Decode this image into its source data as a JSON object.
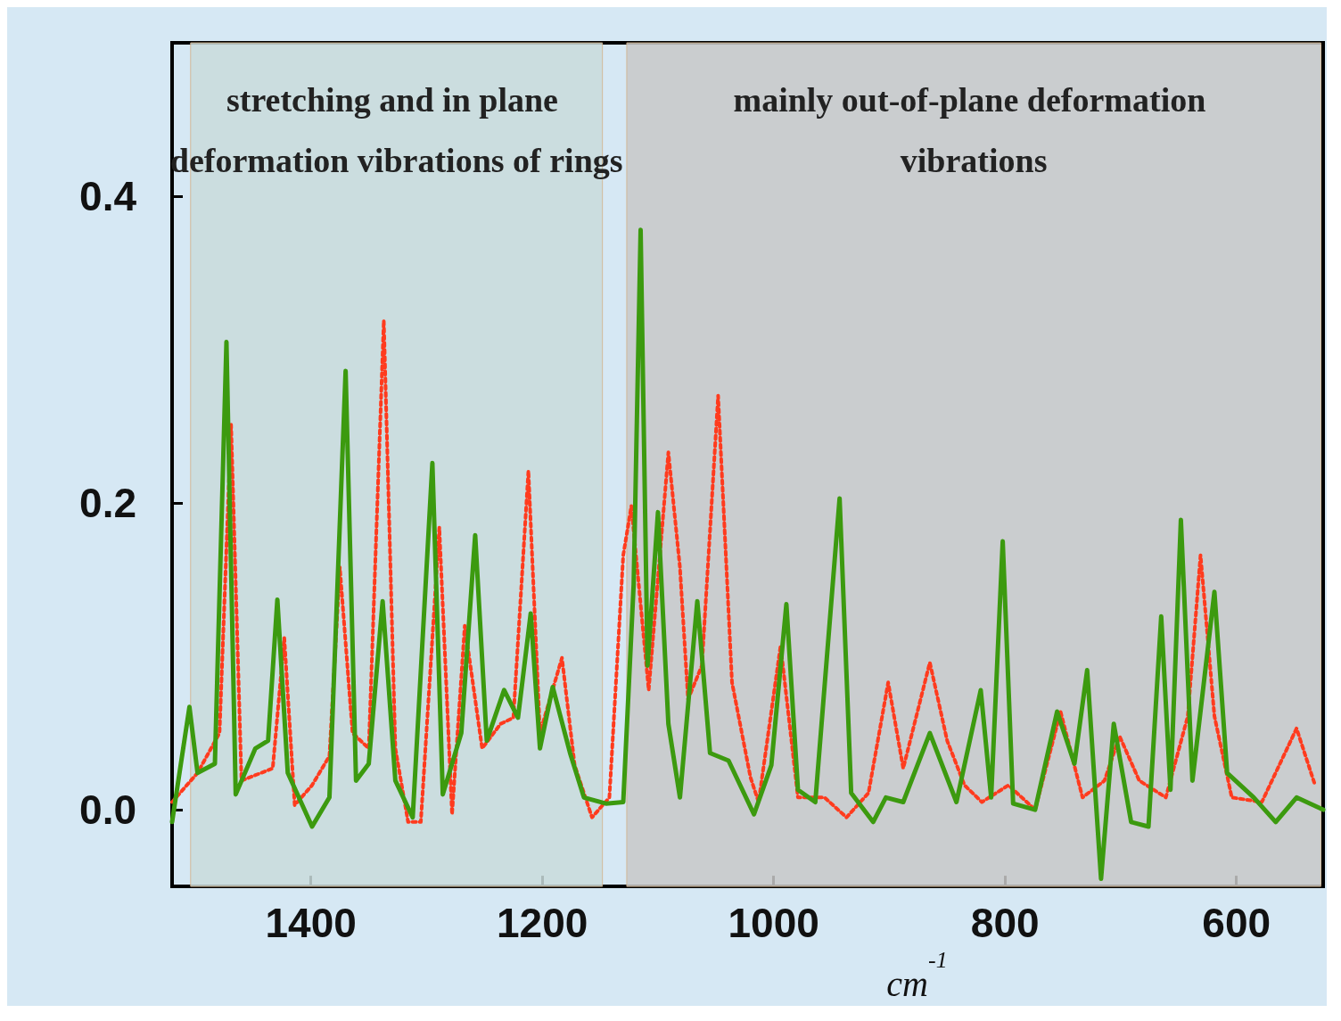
{
  "chart_data": {
    "type": "line",
    "xlabel": "cm$^{-1}$",
    "xlim": [
      1520,
      525
    ],
    "xticks": [
      1400,
      1200,
      1000,
      800,
      600
    ],
    "ylim": [
      -0.05,
      0.5
    ],
    "yticks": [
      {
        "value": 0,
        "label": "0.0"
      },
      {
        "value": 0.2,
        "label": "0.2"
      },
      {
        "value": 0.4,
        "label": "0.4"
      }
    ],
    "bands": [
      {
        "axis": "x",
        "from": 1504,
        "to": 1148,
        "label": "stretching and in plane deformation vibrations of rings",
        "color": "#c9dbdb"
      },
      {
        "axis": "x",
        "from": 1127,
        "to": 527,
        "label": "mainly out-of-plane deformation vibrations",
        "color": "#c8c8c8"
      }
    ],
    "series": [
      {
        "color": "#3c9a0f",
        "line_style": "solid",
        "x": [
          1520,
          1505,
          1498,
          1483,
          1473,
          1465,
          1448,
          1437,
          1429,
          1420,
          1399,
          1384,
          1370,
          1361,
          1350,
          1338,
          1327,
          1312,
          1295,
          1286,
          1270,
          1258,
          1248,
          1233,
          1221,
          1210,
          1202,
          1191,
          1176,
          1164,
          1145,
          1130,
          1121,
          1115,
          1109,
          1100,
          1091,
          1081,
          1066,
          1055,
          1039,
          1017,
          1002,
          989,
          979,
          964,
          943,
          933,
          914,
          903,
          888,
          865,
          842,
          821,
          812,
          802,
          793,
          774,
          755,
          740,
          729,
          717,
          706,
          691,
          676,
          665,
          657,
          648,
          638,
          619,
          608,
          585,
          566,
          548,
          525
        ],
        "values": [
          -0.008,
          0.067,
          0.024,
          0.03,
          0.305,
          0.01,
          0.04,
          0.045,
          0.137,
          0.024,
          -0.011,
          0.008,
          0.286,
          0.019,
          0.03,
          0.136,
          0.019,
          -0.005,
          0.226,
          0.01,
          0.05,
          0.179,
          0.045,
          0.078,
          0.06,
          0.128,
          0.04,
          0.08,
          0.037,
          0.008,
          0.004,
          0.005,
          0.147,
          0.378,
          0.094,
          0.194,
          0.056,
          0.008,
          0.136,
          0.037,
          0.032,
          -0.003,
          0.029,
          0.134,
          0.013,
          0.005,
          0.203,
          0.011,
          -0.008,
          0.008,
          0.005,
          0.05,
          0.005,
          0.078,
          0.008,
          0.175,
          0.004,
          0,
          0.064,
          0.03,
          0.091,
          -0.045,
          0.056,
          -0.008,
          -0.011,
          0.126,
          0.013,
          0.189,
          0.019,
          0.142,
          0.024,
          0.008,
          -0.008,
          0.008,
          0
        ]
      },
      {
        "color": "#ff3b1e",
        "line_style": "dotted",
        "x": [
          1520,
          1498,
          1479,
          1469,
          1460,
          1433,
          1423,
          1414,
          1399,
          1384,
          1375,
          1364,
          1350,
          1337,
          1327,
          1316,
          1305,
          1289,
          1278,
          1267,
          1252,
          1236,
          1225,
          1212,
          1202,
          1183,
          1172,
          1157,
          1142,
          1130,
          1123,
          1108,
          1091,
          1081,
          1074,
          1062,
          1048,
          1036,
          1020,
          1013,
          994,
          979,
          956,
          937,
          918,
          901,
          888,
          865,
          850,
          835,
          820,
          797,
          774,
          752,
          733,
          714,
          701,
          684,
          661,
          642,
          631,
          619,
          604,
          578,
          548,
          532
        ],
        "values": [
          0.005,
          0.024,
          0.05,
          0.251,
          0.019,
          0.027,
          0.112,
          0.003,
          0.016,
          0.035,
          0.158,
          0.05,
          0.04,
          0.319,
          0.04,
          -0.008,
          -0.008,
          0.184,
          -0.003,
          0.12,
          0.04,
          0.056,
          0.06,
          0.221,
          0.05,
          0.099,
          0.029,
          -0.005,
          0.008,
          0.166,
          0.198,
          0.078,
          0.233,
          0.158,
          0.072,
          0.094,
          0.27,
          0.083,
          0.021,
          0.005,
          0.107,
          0.008,
          0.008,
          -0.005,
          0.011,
          0.083,
          0.027,
          0.096,
          0.045,
          0.016,
          0.005,
          0.016,
          0,
          0.064,
          0.008,
          0.019,
          0.048,
          0.019,
          0.008,
          0.061,
          0.166,
          0.061,
          0.008,
          0.005,
          0.053,
          0.016
        ]
      }
    ]
  }
}
